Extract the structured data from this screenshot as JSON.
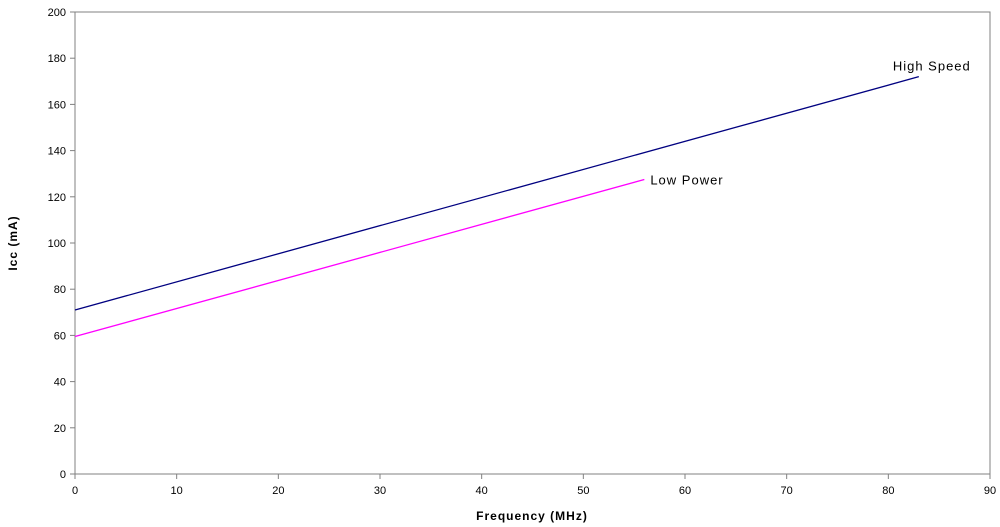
{
  "chart_data": {
    "type": "line",
    "title": "",
    "xlabel": "Frequency (MHz)",
    "ylabel": "Icc (mA)",
    "xlim": [
      0,
      90
    ],
    "ylim": [
      0,
      200
    ],
    "xticks": [
      "0",
      "10",
      "20",
      "30",
      "40",
      "50",
      "60",
      "70",
      "80",
      "90"
    ],
    "yticks": [
      "0",
      "20",
      "40",
      "60",
      "80",
      "100",
      "120",
      "140",
      "160",
      "180",
      "200"
    ],
    "grid": false,
    "legend": "none",
    "series": [
      {
        "name": "High Speed",
        "color": "#000080",
        "x": [
          0,
          83
        ],
        "y": [
          71,
          172
        ]
      },
      {
        "name": "Low Power",
        "color": "#ff00ff",
        "x": [
          0,
          56
        ],
        "y": [
          59.5,
          127.5
        ]
      }
    ]
  }
}
